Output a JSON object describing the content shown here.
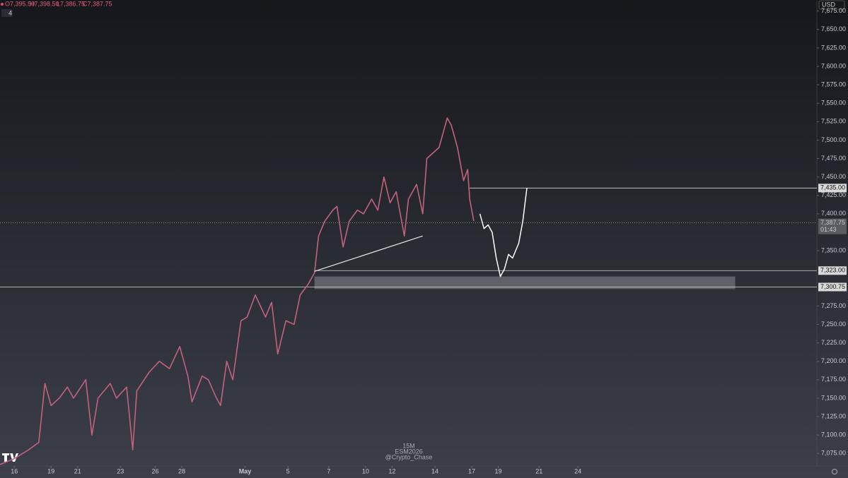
{
  "chart_data": {
    "type": "line",
    "currency": "USD",
    "header": [
      "O7,395.50",
      "H7,398.50",
      "L7,386.75",
      "C7,387.75"
    ],
    "indicator_count": "4",
    "watermark": [
      "15M",
      "ESM2026",
      "@Crypto_Chase"
    ],
    "xlim": [
      0,
      40
    ],
    "xticks": [
      {
        "value": 0.7,
        "label": "16"
      },
      {
        "value": 2.5,
        "label": "19"
      },
      {
        "value": 3.8,
        "label": "21"
      },
      {
        "value": 5.9,
        "label": "23"
      },
      {
        "value": 7.6,
        "label": "26"
      },
      {
        "value": 8.9,
        "label": "28"
      },
      {
        "value": 12.0,
        "label": "May"
      },
      {
        "value": 14.1,
        "label": "5"
      },
      {
        "value": 16.1,
        "label": "7"
      },
      {
        "value": 17.9,
        "label": "10"
      },
      {
        "value": 19.2,
        "label": "12"
      },
      {
        "value": 21.3,
        "label": "14"
      },
      {
        "value": 23.1,
        "label": "17"
      },
      {
        "value": 24.4,
        "label": "19"
      },
      {
        "value": 26.4,
        "label": "21"
      },
      {
        "value": 28.3,
        "label": "24"
      }
    ],
    "ylim": [
      7058,
      7690
    ],
    "yticks": [
      {
        "value": 7075,
        "label": "7,075.00"
      },
      {
        "value": 7100,
        "label": "7,100.00"
      },
      {
        "value": 7125,
        "label": "7,125.00"
      },
      {
        "value": 7150,
        "label": "7,150.00"
      },
      {
        "value": 7175,
        "label": "7,175.00"
      },
      {
        "value": 7200,
        "label": "7,200.00"
      },
      {
        "value": 7225,
        "label": "7,225.00"
      },
      {
        "value": 7250,
        "label": "7,250.00"
      },
      {
        "value": 7275,
        "label": "7,275.00"
      },
      {
        "value": 7350,
        "label": "7,350.00"
      },
      {
        "value": 7400,
        "label": "7,400.00"
      },
      {
        "value": 7425,
        "label": "7,425.00"
      },
      {
        "value": 7450,
        "label": "7,450.00"
      },
      {
        "value": 7475,
        "label": "7,475.00"
      },
      {
        "value": 7500,
        "label": "7,500.00"
      },
      {
        "value": 7525,
        "label": "7,525.00"
      },
      {
        "value": 7550,
        "label": "7,550.00"
      },
      {
        "value": 7575,
        "label": "7,575.00"
      },
      {
        "value": 7600,
        "label": "7,600.00"
      },
      {
        "value": 7625,
        "label": "7,625.00"
      },
      {
        "value": 7650,
        "label": "7,650.00"
      },
      {
        "value": 7675,
        "label": "7,675.00"
      }
    ],
    "price": {
      "color": "#c2627e",
      "x": [
        0,
        0.7,
        1.4,
        1.9,
        2.2,
        2.5,
        2.9,
        3.3,
        3.6,
        4.2,
        4.5,
        4.8,
        5.4,
        5.7,
        6.2,
        6.5,
        6.7,
        7.3,
        7.8,
        8.3,
        8.8,
        9.2,
        9.4,
        9.9,
        10.2,
        10.6,
        10.8,
        11.1,
        11.4,
        11.8,
        12.1,
        12.5,
        13.0,
        13.3,
        13.6,
        14.0,
        14.4,
        14.7,
        15.1,
        15.4,
        15.6,
        15.9,
        16.3,
        16.5,
        16.8,
        17.1,
        17.5,
        17.8,
        18.2,
        18.5,
        18.8,
        19.1,
        19.4,
        19.8,
        20.0,
        20.4,
        20.7,
        20.9,
        21.5,
        21.7,
        21.9,
        22.1,
        22.4,
        22.7,
        22.9,
        23.0,
        23.2
      ],
      "values": [
        7060,
        7068,
        7080,
        7090,
        7170,
        7140,
        7150,
        7165,
        7150,
        7175,
        7100,
        7150,
        7170,
        7150,
        7165,
        7080,
        7160,
        7185,
        7200,
        7190,
        7220,
        7180,
        7145,
        7180,
        7175,
        7150,
        7140,
        7200,
        7175,
        7255,
        7260,
        7290,
        7260,
        7280,
        7210,
        7255,
        7250,
        7290,
        7305,
        7320,
        7370,
        7390,
        7405,
        7410,
        7355,
        7390,
        7405,
        7400,
        7420,
        7405,
        7450,
        7415,
        7430,
        7370,
        7420,
        7440,
        7400,
        7475,
        7490,
        7510,
        7530,
        7520,
        7490,
        7445,
        7460,
        7420,
        7390
      ]
    },
    "projection": {
      "color": "#ffffff",
      "x": [
        23.5,
        23.7,
        23.9,
        24.1,
        24.3,
        24.5,
        24.7,
        24.9,
        25.1,
        25.4,
        25.6,
        25.8
      ],
      "values": [
        7400,
        7380,
        7385,
        7375,
        7340,
        7315,
        7325,
        7345,
        7340,
        7360,
        7390,
        7435
      ]
    },
    "trendline": {
      "x": [
        15.4,
        20.7
      ],
      "values": [
        7322,
        7370
      ]
    },
    "zone": {
      "x": [
        15.4,
        36.0
      ],
      "values": [
        7298,
        7315
      ]
    },
    "levels": [
      {
        "value": 7435,
        "label": "7,435.00",
        "start": 23.0
      },
      {
        "value": 7323,
        "label": "7,323.00",
        "start": 15.4
      },
      {
        "value": 7300.75,
        "label": "7,300.75",
        "start": 0
      }
    ],
    "last_price": {
      "value": 7387.75,
      "label": "7,387.75",
      "timer": "01:43"
    }
  }
}
